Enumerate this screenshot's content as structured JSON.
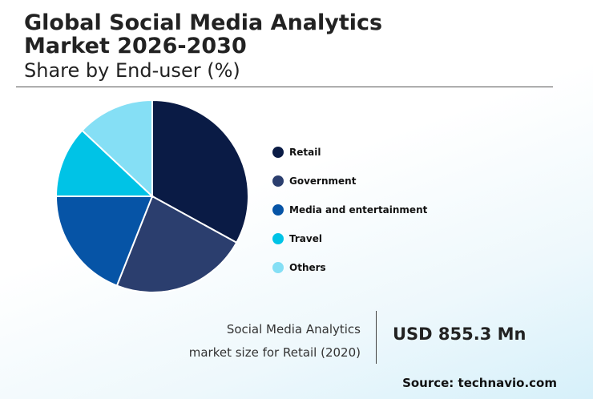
{
  "header": {
    "title": "Global Social Media Analytics Market 2026-2030",
    "subtitle": "Share by End-user (%)"
  },
  "chart_data": {
    "type": "pie",
    "title": "Global Social Media Analytics Market 2026-2030",
    "subtitle": "Share by End-user (%)",
    "categories": [
      "Retail",
      "Government",
      "Media and entertainment",
      "Travel",
      "Others"
    ],
    "values": [
      33,
      23,
      19,
      12,
      13
    ],
    "colors": [
      "#0a1b45",
      "#2b3e6e",
      "#0654a6",
      "#00c3e6",
      "#85dff5"
    ],
    "legend_position": "right",
    "slice_border": "#ffffff"
  },
  "kpi": {
    "caption_line1": "Social Media Analytics",
    "caption_line2": "market size for Retail (2020)",
    "value": "USD 855.3 Mn"
  },
  "footer": {
    "source": "Source: technavio.com"
  }
}
